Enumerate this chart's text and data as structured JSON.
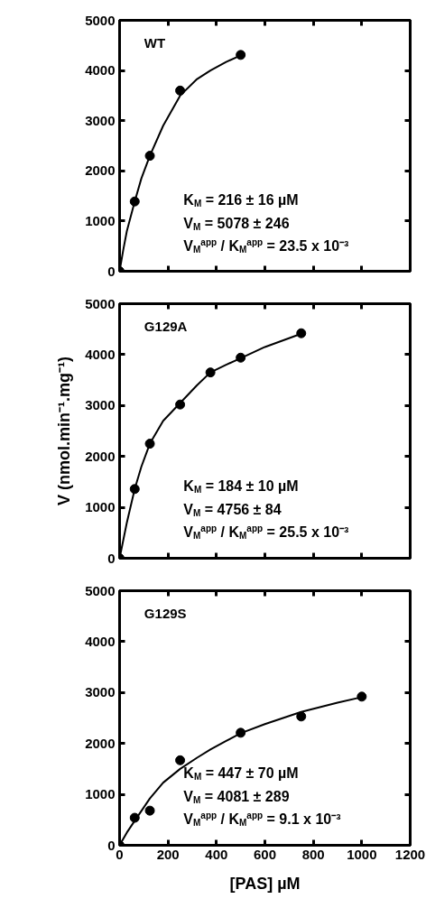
{
  "chart_data": [
    {
      "type": "scatter",
      "title": "WT",
      "xlim": [
        0,
        1200
      ],
      "xticks": [
        0,
        200,
        400,
        600,
        800,
        1000,
        1200
      ],
      "ylim": [
        0,
        5000
      ],
      "yticks": [
        0,
        1000,
        2000,
        3000,
        4000,
        5000
      ],
      "tick_labels": "y",
      "annotations": [
        "K$_{M}$ = 216 ± 16 µM",
        "V$_{M}$ = 5078 ± 246",
        "V$_{M}$$^{app}$ / K$_{M}$$^{app}$ = 23.5 x 10⁻³"
      ],
      "series": [
        {
          "type": "line",
          "color": "#000000",
          "x": [
            0,
            15,
            30,
            62.5,
            90,
            125,
            180,
            250,
            320,
            375,
            440,
            500
          ],
          "values": [
            0,
            420,
            800,
            1390,
            1850,
            2300,
            2900,
            3500,
            3830,
            4000,
            4170,
            4300
          ]
        },
        {
          "marker": "circle",
          "color": "#000000",
          "x": [
            0,
            62.5,
            125,
            250,
            500
          ],
          "values": [
            0,
            1390,
            2300,
            3600,
            4310
          ]
        }
      ]
    },
    {
      "type": "scatter",
      "title": "G129A",
      "ylabel": "V (nmol.min⁻¹.mg⁻¹)",
      "xlim": [
        0,
        1200
      ],
      "xticks": [
        0,
        200,
        400,
        600,
        800,
        1000,
        1200
      ],
      "ylim": [
        0,
        5000
      ],
      "yticks": [
        0,
        1000,
        2000,
        3000,
        4000,
        5000
      ],
      "tick_labels": "y",
      "annotations": [
        "K$_{M}$ = 184 ± 10 µM",
        "V$_{M}$ = 4756 ± 84",
        "V$_{M}$$^{app}$ / K$_{M}$$^{app}$ = 25.5 x 10⁻³"
      ],
      "series": [
        {
          "type": "line",
          "color": "#000000",
          "x": [
            0,
            15,
            30,
            62.5,
            90,
            125,
            180,
            250,
            320,
            375,
            440,
            500,
            600,
            750
          ],
          "values": [
            0,
            350,
            700,
            1360,
            1800,
            2250,
            2700,
            3050,
            3400,
            3650,
            3800,
            3930,
            4150,
            4410
          ]
        },
        {
          "marker": "circle",
          "color": "#000000",
          "x": [
            0,
            62.5,
            125,
            250,
            375,
            500,
            750
          ],
          "values": [
            0,
            1360,
            2250,
            3020,
            3650,
            3940,
            4420
          ]
        }
      ]
    },
    {
      "type": "scatter",
      "title": "G129S",
      "xlabel": "[PAS] µM",
      "xlim": [
        0,
        1200
      ],
      "xticks": [
        0,
        200,
        400,
        600,
        800,
        1000,
        1200
      ],
      "ylim": [
        0,
        5000
      ],
      "yticks": [
        0,
        1000,
        2000,
        3000,
        4000,
        5000
      ],
      "annotations": [
        "K$_{M}$ = 447 ± 70 µM",
        "V$_{M}$ = 4081 ± 289",
        "V$_{M}$$^{app}$ / K$_{M}$$^{app}$ = 9.1 x 10⁻³"
      ],
      "series": [
        {
          "type": "line",
          "color": "#000000",
          "x": [
            0,
            30,
            62.5,
            125,
            180,
            250,
            320,
            375,
            440,
            500,
            600,
            750,
            900,
            1000
          ],
          "values": [
            0,
            250,
            480,
            920,
            1230,
            1500,
            1720,
            1880,
            2050,
            2200,
            2380,
            2620,
            2800,
            2910
          ]
        },
        {
          "marker": "circle",
          "color": "#000000",
          "x": [
            0,
            62.5,
            125,
            250,
            500,
            750,
            1000
          ],
          "values": [
            0,
            540,
            680,
            1670,
            2210,
            2530,
            2920
          ]
        }
      ]
    }
  ]
}
